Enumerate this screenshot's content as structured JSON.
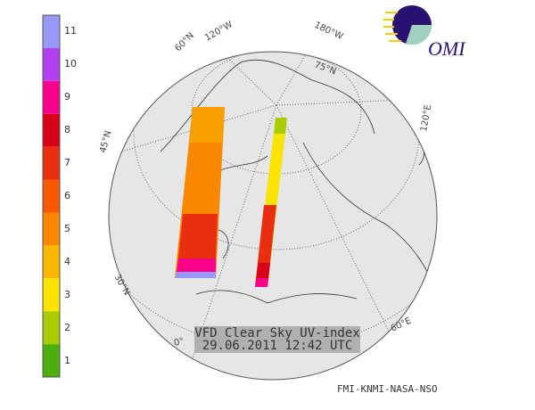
{
  "title": {
    "line1": "VFD Clear Sky UV-index",
    "line2": "29.06.2011 12:42 UTC"
  },
  "credit": "FMI-KNMI-NASA-NSO",
  "logo": {
    "text": "OMI"
  },
  "colorbar": {
    "labels": [
      "1",
      "2",
      "3",
      "4",
      "5",
      "6",
      "7",
      "8",
      "9",
      "10",
      "11"
    ],
    "colors": [
      "#4caf10",
      "#a8cc00",
      "#f8e400",
      "#f8b800",
      "#f88800",
      "#f85800",
      "#e83010",
      "#d80018",
      "#f8008c",
      "#b040f0",
      "#9898f8"
    ]
  },
  "graticule_labels": [
    "60°N",
    "120°W",
    "180°W",
    "75°N",
    "120°E",
    "45°N",
    "30°N",
    "0°",
    "60°E"
  ],
  "colors": {
    "globe": "#e6e6e6",
    "title_box": "#b0b0b0"
  }
}
